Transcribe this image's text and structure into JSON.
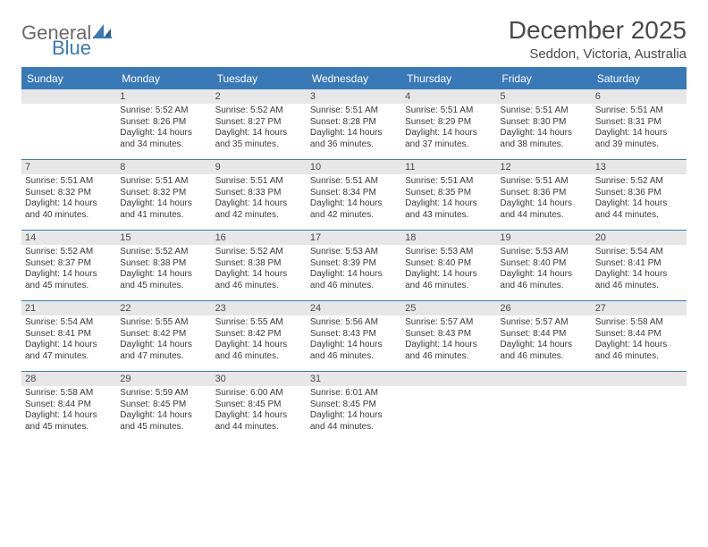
{
  "logo": {
    "text1": "General",
    "text2": "Blue"
  },
  "title": "December 2025",
  "location": "Seddon, Victoria, Australia",
  "colors": {
    "accent": "#3a79b7",
    "daynum_bg": "#e7e7e7",
    "text": "#3a3a3a",
    "background": "#ffffff"
  },
  "day_headers": [
    "Sunday",
    "Monday",
    "Tuesday",
    "Wednesday",
    "Thursday",
    "Friday",
    "Saturday"
  ],
  "weeks": [
    [
      {
        "n": "",
        "sunrise": "",
        "sunset": "",
        "daylight1": "",
        "daylight2": ""
      },
      {
        "n": "1",
        "sunrise": "Sunrise: 5:52 AM",
        "sunset": "Sunset: 8:26 PM",
        "daylight1": "Daylight: 14 hours",
        "daylight2": "and 34 minutes."
      },
      {
        "n": "2",
        "sunrise": "Sunrise: 5:52 AM",
        "sunset": "Sunset: 8:27 PM",
        "daylight1": "Daylight: 14 hours",
        "daylight2": "and 35 minutes."
      },
      {
        "n": "3",
        "sunrise": "Sunrise: 5:51 AM",
        "sunset": "Sunset: 8:28 PM",
        "daylight1": "Daylight: 14 hours",
        "daylight2": "and 36 minutes."
      },
      {
        "n": "4",
        "sunrise": "Sunrise: 5:51 AM",
        "sunset": "Sunset: 8:29 PM",
        "daylight1": "Daylight: 14 hours",
        "daylight2": "and 37 minutes."
      },
      {
        "n": "5",
        "sunrise": "Sunrise: 5:51 AM",
        "sunset": "Sunset: 8:30 PM",
        "daylight1": "Daylight: 14 hours",
        "daylight2": "and 38 minutes."
      },
      {
        "n": "6",
        "sunrise": "Sunrise: 5:51 AM",
        "sunset": "Sunset: 8:31 PM",
        "daylight1": "Daylight: 14 hours",
        "daylight2": "and 39 minutes."
      }
    ],
    [
      {
        "n": "7",
        "sunrise": "Sunrise: 5:51 AM",
        "sunset": "Sunset: 8:32 PM",
        "daylight1": "Daylight: 14 hours",
        "daylight2": "and 40 minutes."
      },
      {
        "n": "8",
        "sunrise": "Sunrise: 5:51 AM",
        "sunset": "Sunset: 8:32 PM",
        "daylight1": "Daylight: 14 hours",
        "daylight2": "and 41 minutes."
      },
      {
        "n": "9",
        "sunrise": "Sunrise: 5:51 AM",
        "sunset": "Sunset: 8:33 PM",
        "daylight1": "Daylight: 14 hours",
        "daylight2": "and 42 minutes."
      },
      {
        "n": "10",
        "sunrise": "Sunrise: 5:51 AM",
        "sunset": "Sunset: 8:34 PM",
        "daylight1": "Daylight: 14 hours",
        "daylight2": "and 42 minutes."
      },
      {
        "n": "11",
        "sunrise": "Sunrise: 5:51 AM",
        "sunset": "Sunset: 8:35 PM",
        "daylight1": "Daylight: 14 hours",
        "daylight2": "and 43 minutes."
      },
      {
        "n": "12",
        "sunrise": "Sunrise: 5:51 AM",
        "sunset": "Sunset: 8:36 PM",
        "daylight1": "Daylight: 14 hours",
        "daylight2": "and 44 minutes."
      },
      {
        "n": "13",
        "sunrise": "Sunrise: 5:52 AM",
        "sunset": "Sunset: 8:36 PM",
        "daylight1": "Daylight: 14 hours",
        "daylight2": "and 44 minutes."
      }
    ],
    [
      {
        "n": "14",
        "sunrise": "Sunrise: 5:52 AM",
        "sunset": "Sunset: 8:37 PM",
        "daylight1": "Daylight: 14 hours",
        "daylight2": "and 45 minutes."
      },
      {
        "n": "15",
        "sunrise": "Sunrise: 5:52 AM",
        "sunset": "Sunset: 8:38 PM",
        "daylight1": "Daylight: 14 hours",
        "daylight2": "and 45 minutes."
      },
      {
        "n": "16",
        "sunrise": "Sunrise: 5:52 AM",
        "sunset": "Sunset: 8:38 PM",
        "daylight1": "Daylight: 14 hours",
        "daylight2": "and 46 minutes."
      },
      {
        "n": "17",
        "sunrise": "Sunrise: 5:53 AM",
        "sunset": "Sunset: 8:39 PM",
        "daylight1": "Daylight: 14 hours",
        "daylight2": "and 46 minutes."
      },
      {
        "n": "18",
        "sunrise": "Sunrise: 5:53 AM",
        "sunset": "Sunset: 8:40 PM",
        "daylight1": "Daylight: 14 hours",
        "daylight2": "and 46 minutes."
      },
      {
        "n": "19",
        "sunrise": "Sunrise: 5:53 AM",
        "sunset": "Sunset: 8:40 PM",
        "daylight1": "Daylight: 14 hours",
        "daylight2": "and 46 minutes."
      },
      {
        "n": "20",
        "sunrise": "Sunrise: 5:54 AM",
        "sunset": "Sunset: 8:41 PM",
        "daylight1": "Daylight: 14 hours",
        "daylight2": "and 46 minutes."
      }
    ],
    [
      {
        "n": "21",
        "sunrise": "Sunrise: 5:54 AM",
        "sunset": "Sunset: 8:41 PM",
        "daylight1": "Daylight: 14 hours",
        "daylight2": "and 47 minutes."
      },
      {
        "n": "22",
        "sunrise": "Sunrise: 5:55 AM",
        "sunset": "Sunset: 8:42 PM",
        "daylight1": "Daylight: 14 hours",
        "daylight2": "and 47 minutes."
      },
      {
        "n": "23",
        "sunrise": "Sunrise: 5:55 AM",
        "sunset": "Sunset: 8:42 PM",
        "daylight1": "Daylight: 14 hours",
        "daylight2": "and 46 minutes."
      },
      {
        "n": "24",
        "sunrise": "Sunrise: 5:56 AM",
        "sunset": "Sunset: 8:43 PM",
        "daylight1": "Daylight: 14 hours",
        "daylight2": "and 46 minutes."
      },
      {
        "n": "25",
        "sunrise": "Sunrise: 5:57 AM",
        "sunset": "Sunset: 8:43 PM",
        "daylight1": "Daylight: 14 hours",
        "daylight2": "and 46 minutes."
      },
      {
        "n": "26",
        "sunrise": "Sunrise: 5:57 AM",
        "sunset": "Sunset: 8:44 PM",
        "daylight1": "Daylight: 14 hours",
        "daylight2": "and 46 minutes."
      },
      {
        "n": "27",
        "sunrise": "Sunrise: 5:58 AM",
        "sunset": "Sunset: 8:44 PM",
        "daylight1": "Daylight: 14 hours",
        "daylight2": "and 46 minutes."
      }
    ],
    [
      {
        "n": "28",
        "sunrise": "Sunrise: 5:58 AM",
        "sunset": "Sunset: 8:44 PM",
        "daylight1": "Daylight: 14 hours",
        "daylight2": "and 45 minutes."
      },
      {
        "n": "29",
        "sunrise": "Sunrise: 5:59 AM",
        "sunset": "Sunset: 8:45 PM",
        "daylight1": "Daylight: 14 hours",
        "daylight2": "and 45 minutes."
      },
      {
        "n": "30",
        "sunrise": "Sunrise: 6:00 AM",
        "sunset": "Sunset: 8:45 PM",
        "daylight1": "Daylight: 14 hours",
        "daylight2": "and 44 minutes."
      },
      {
        "n": "31",
        "sunrise": "Sunrise: 6:01 AM",
        "sunset": "Sunset: 8:45 PM",
        "daylight1": "Daylight: 14 hours",
        "daylight2": "and 44 minutes."
      },
      {
        "n": "",
        "sunrise": "",
        "sunset": "",
        "daylight1": "",
        "daylight2": ""
      },
      {
        "n": "",
        "sunrise": "",
        "sunset": "",
        "daylight1": "",
        "daylight2": ""
      },
      {
        "n": "",
        "sunrise": "",
        "sunset": "",
        "daylight1": "",
        "daylight2": ""
      }
    ]
  ]
}
